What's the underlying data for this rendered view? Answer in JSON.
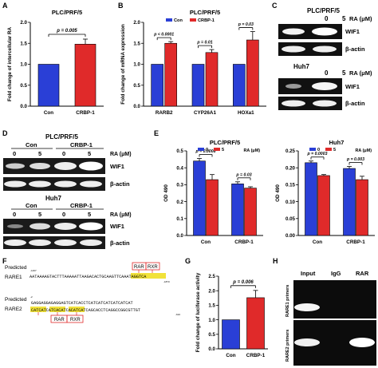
{
  "panel_letters": [
    "A",
    "B",
    "C",
    "D",
    "E",
    "F",
    "G",
    "H"
  ],
  "chart_data": [
    {
      "id": "A",
      "type": "bar",
      "title": "PLC/PRF/5",
      "ylabel": "Fold change of intercellular RA",
      "categories": [
        "Con",
        "CRBP-1"
      ],
      "values": [
        1.0,
        1.48
      ],
      "errors": [
        0,
        0.12
      ],
      "ylim": [
        0,
        2.0
      ],
      "yticks": [
        "0.0",
        "0.5",
        "1.0",
        "1.5",
        "2.0"
      ],
      "colors": [
        "#2a3fd6",
        "#e02a2a"
      ],
      "annotation": "p = 0.005"
    },
    {
      "id": "B",
      "type": "bar",
      "title": "PLC/PRF/5",
      "ylabel": "Fold change of mRNA expression",
      "categories": [
        "RARB2",
        "CYP26A1",
        "HOXa1"
      ],
      "series": [
        {
          "name": "Con",
          "values": [
            1.0,
            1.0,
            1.0
          ],
          "errors": [
            0,
            0,
            0
          ]
        },
        {
          "name": "CRBP-1",
          "values": [
            1.5,
            1.28,
            1.58
          ],
          "errors": [
            0.04,
            0.07,
            0.2
          ]
        }
      ],
      "legend": "top",
      "ylim": [
        0,
        2.0
      ],
      "yticks": [
        "0.0",
        "0.5",
        "1.0",
        "1.5",
        "2.0"
      ],
      "colors": [
        "#2a3fd6",
        "#e02a2a"
      ],
      "annotations": [
        "p < 0.0001",
        "p = 0.01",
        "p = 0.03"
      ]
    },
    {
      "id": "E1",
      "type": "bar",
      "title": "PLC/PRF/5",
      "ylabel": "OD 490",
      "categories": [
        "Con",
        "CRBP-1"
      ],
      "legend_title": "RA (μM)",
      "series": [
        {
          "name": "0",
          "values": [
            0.44,
            0.305
          ],
          "errors": [
            0.015,
            0.012
          ]
        },
        {
          "name": "5",
          "values": [
            0.33,
            0.28
          ],
          "errors": [
            0.03,
            0.008
          ]
        }
      ],
      "ylim": [
        0,
        0.5
      ],
      "yticks": [
        "0.0",
        "0.1",
        "0.2",
        "0.3",
        "0.4",
        "0.5"
      ],
      "colors": [
        "#2a3fd6",
        "#e02a2a"
      ],
      "annotations": [
        "p = 0.0008",
        "p = 0.03"
      ]
    },
    {
      "id": "E2",
      "type": "bar",
      "title": "Huh7",
      "ylabel": "OD 490",
      "categories": [
        "Con",
        "CRBP-1"
      ],
      "legend_title": "RA (μM)",
      "series": [
        {
          "name": "0",
          "values": [
            0.215,
            0.198
          ],
          "errors": [
            0.005,
            0.006
          ]
        },
        {
          "name": "5",
          "values": [
            0.177,
            0.165
          ],
          "errors": [
            0.003,
            0.01
          ]
        }
      ],
      "ylim": [
        0,
        0.25
      ],
      "yticks": [
        "0.00",
        "0.05",
        "0.10",
        "0.15",
        "0.20",
        "0.25"
      ],
      "colors": [
        "#2a3fd6",
        "#e02a2a"
      ],
      "annotations": [
        "p = 0.0003",
        "p = 0.003"
      ]
    },
    {
      "id": "G",
      "type": "bar",
      "ylabel": "Fold change of luciferase activity",
      "categories": [
        "Con",
        "CRBP-1"
      ],
      "values": [
        1.0,
        1.76
      ],
      "errors": [
        0,
        0.25
      ],
      "ylim": [
        0,
        2.5
      ],
      "yticks": [
        "0.0",
        "0.5",
        "1.0",
        "1.5",
        "2.0",
        "2.5"
      ],
      "colors": [
        "#2a3fd6",
        "#e02a2a"
      ],
      "annotation": "p = 0.006"
    }
  ],
  "blots": {
    "C": {
      "plc_label": "PLC/PRF/5",
      "huh_label": "Huh7",
      "ra_label": "RA (μM)",
      "lanes": [
        "0",
        "5"
      ],
      "bands": [
        "WIF1",
        "β-actin"
      ]
    },
    "D": {
      "plc_label": "PLC/PRF/5",
      "huh_label": "Huh7",
      "groups": [
        "Con",
        "CRBP-1"
      ],
      "ra_label": "RA (μM)",
      "lanes": [
        "0",
        "5",
        "0",
        "5"
      ],
      "bands": [
        "WIF1",
        "β-actin"
      ]
    },
    "H": {
      "columns": [
        "Input",
        "IgG",
        "RAR"
      ],
      "rows": [
        "RARE1 primers",
        "RARE2 primers"
      ]
    }
  },
  "sequences": {
    "rare1_label": "Predicted",
    "rare1_name": "RARE1",
    "rare1_pos_start": "-1467",
    "rare1_line": "AATAAAAGTACTTTAAAAATTAAGACACTGCAAGTTCAAATAGGTCA",
    "rare1_pos_end": "-1873",
    "rare1_boxes": [
      "RAR",
      "RXR"
    ],
    "rare2_label": "Predicted",
    "rare2_name": "RARE2",
    "rare2_pos_start": "-2",
    "rare2_line1": "GAGGAGGAGAGGAGTCATCACCTCATCATCATCATCATCAT",
    "rare2_line2": "CATCATCATCACATCACATCATCAGCACCTCAGGCCGGCGTTGT",
    "rare2_pos_end": "-610",
    "rare2_boxes": [
      "RAR",
      "RXR"
    ]
  }
}
